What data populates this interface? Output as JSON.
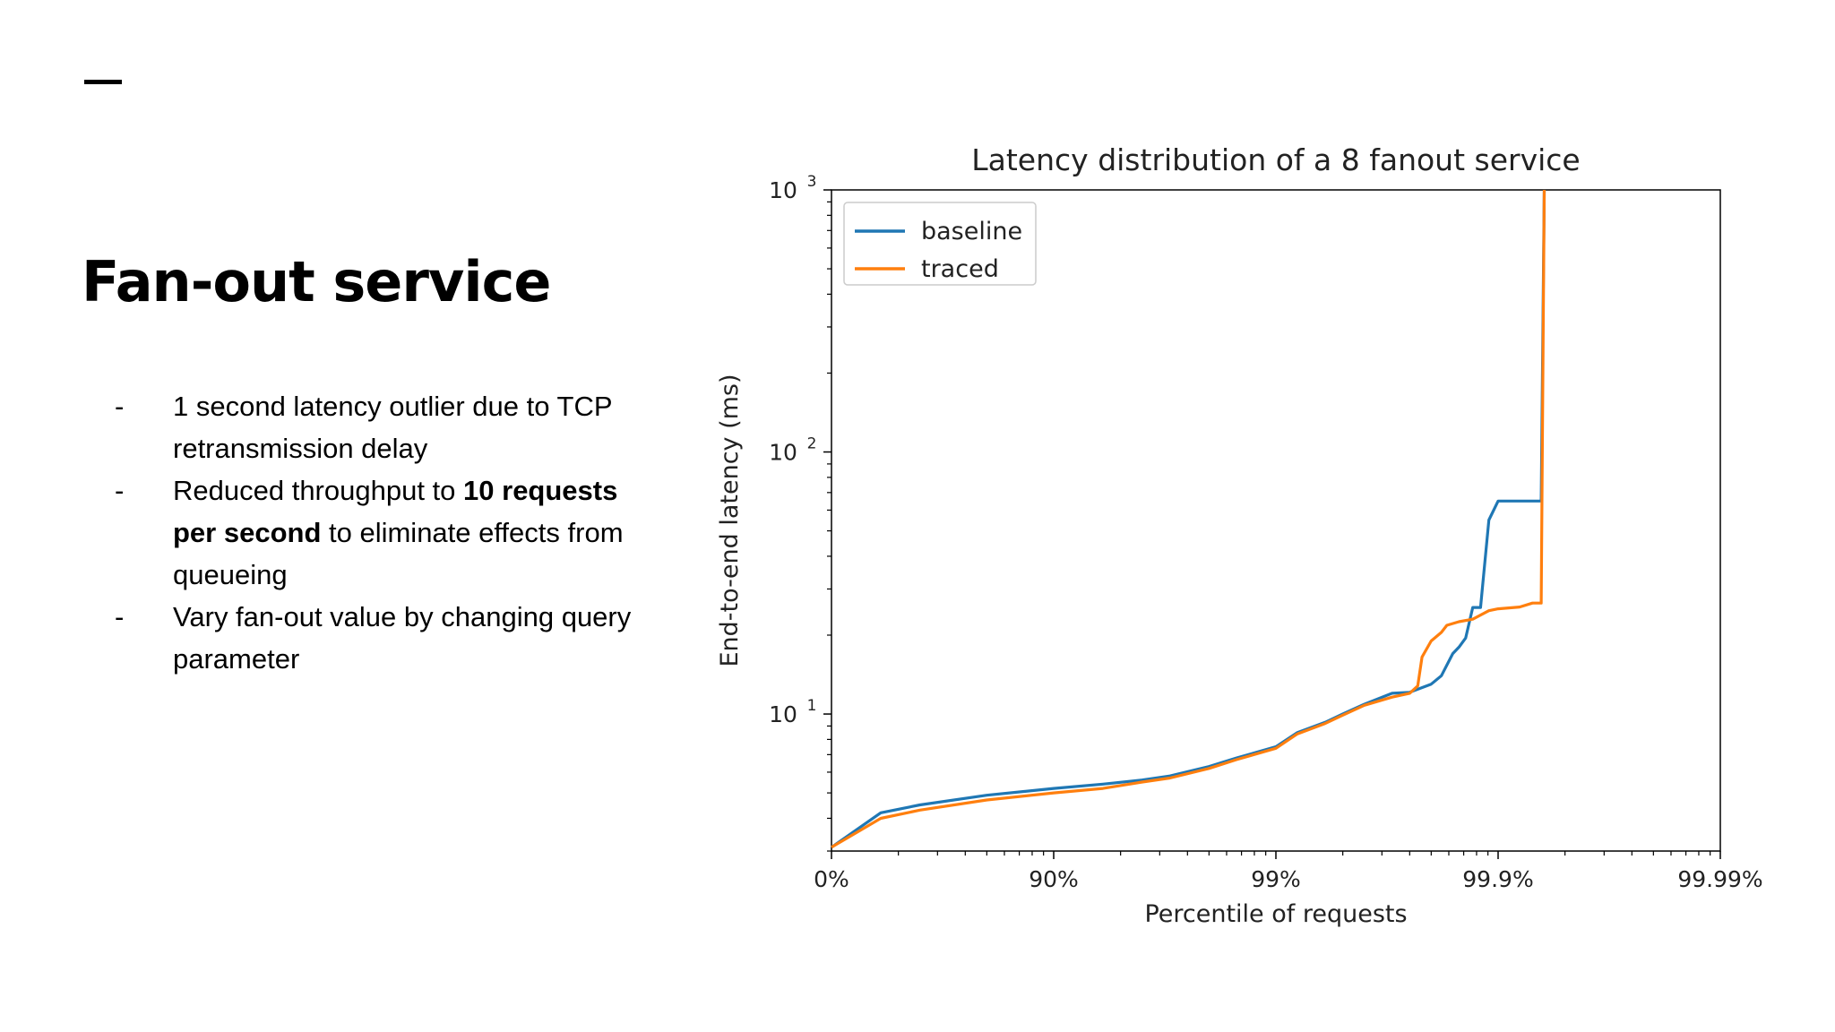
{
  "slide": {
    "title": "Fan-out service",
    "bullets": [
      {
        "text": "1 second latency outlier due to TCP retransmission delay"
      },
      {
        "before": "Reduced throughput to ",
        "bold": "10 requests per second",
        "after": " to eliminate effects from queueing"
      },
      {
        "text": "Vary fan-out value by changing query parameter"
      }
    ],
    "bullet_marker": "-"
  },
  "chart_data": {
    "type": "line",
    "title": "Latency distribution of a 8 fanout service",
    "xlabel": "Percentile of requests",
    "ylabel": "End-to-end latency (ms)",
    "xscale": "log-percentile (nines)",
    "yscale": "log",
    "xlim": [
      "0%",
      "99.99%"
    ],
    "ylim": [
      3,
      1000
    ],
    "xticks": [
      "0%",
      "90%",
      "99%",
      "99.9%",
      "99.99%"
    ],
    "yticks": [
      {
        "value": 10,
        "base": "10",
        "exp": "1"
      },
      {
        "value": 100,
        "base": "10",
        "exp": "2"
      },
      {
        "value": 1000,
        "base": "10",
        "exp": "3"
      }
    ],
    "grid": false,
    "legend": "top-left",
    "colors": {
      "baseline": "#1f77b4",
      "traced": "#ff7f0e"
    },
    "series": [
      {
        "name": "baseline",
        "points": [
          [
            0,
            3.1
          ],
          [
            0.4,
            4.2
          ],
          [
            0.6,
            4.5
          ],
          [
            0.8,
            4.9
          ],
          [
            0.9,
            5.2
          ],
          [
            0.94,
            5.4
          ],
          [
            0.96,
            5.6
          ],
          [
            0.97,
            5.8
          ],
          [
            0.98,
            6.3
          ],
          [
            0.985,
            6.8
          ],
          [
            0.99,
            7.5
          ],
          [
            0.992,
            8.5
          ],
          [
            0.994,
            9.3
          ],
          [
            0.995,
            10.0
          ],
          [
            0.996,
            10.9
          ],
          [
            0.997,
            12.0
          ],
          [
            0.9975,
            12.1
          ],
          [
            0.998,
            13.0
          ],
          [
            0.9982,
            14.0
          ],
          [
            0.9984,
            17.0
          ],
          [
            0.9985,
            18.0
          ],
          [
            0.9986,
            19.5
          ],
          [
            0.9987,
            25.5
          ],
          [
            0.9988,
            25.5
          ],
          [
            0.9989,
            55.0
          ],
          [
            0.999,
            65.0
          ],
          [
            0.99936,
            65.0
          ],
          [
            0.99938,
            1000
          ]
        ]
      },
      {
        "name": "traced",
        "points": [
          [
            0,
            3.1
          ],
          [
            0.4,
            4.0
          ],
          [
            0.6,
            4.3
          ],
          [
            0.8,
            4.7
          ],
          [
            0.9,
            5.0
          ],
          [
            0.94,
            5.2
          ],
          [
            0.96,
            5.5
          ],
          [
            0.97,
            5.7
          ],
          [
            0.98,
            6.2
          ],
          [
            0.985,
            6.7
          ],
          [
            0.99,
            7.4
          ],
          [
            0.992,
            8.4
          ],
          [
            0.994,
            9.2
          ],
          [
            0.995,
            9.9
          ],
          [
            0.996,
            10.8
          ],
          [
            0.997,
            11.6
          ],
          [
            0.9975,
            12.0
          ],
          [
            0.9977,
            12.8
          ],
          [
            0.9978,
            16.5
          ],
          [
            0.998,
            19.0
          ],
          [
            0.9982,
            20.5
          ],
          [
            0.9983,
            21.8
          ],
          [
            0.9985,
            22.5
          ],
          [
            0.9987,
            23.0
          ],
          [
            0.9989,
            24.8
          ],
          [
            0.999,
            25.2
          ],
          [
            0.9992,
            25.6
          ],
          [
            0.9993,
            26.5
          ],
          [
            0.99936,
            26.5
          ],
          [
            0.99938,
            1000
          ]
        ]
      }
    ]
  }
}
